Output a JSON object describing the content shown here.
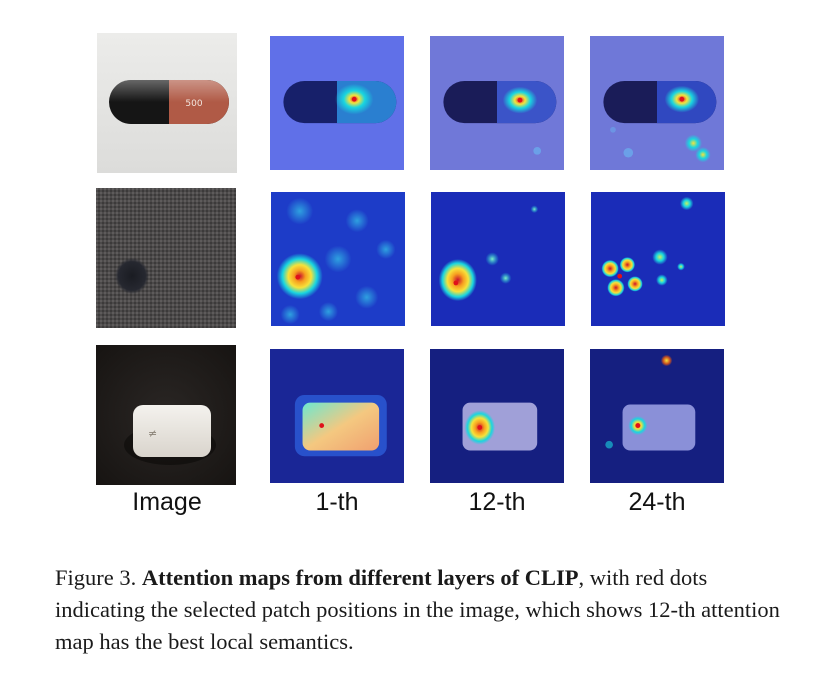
{
  "columns": [
    "Image",
    "1-th",
    "12-th",
    "24-th"
  ],
  "rows": [
    {
      "object": "capsule-pill",
      "background": "#e6e6e6"
    },
    {
      "object": "fabric-texture",
      "background": "#4a4848"
    },
    {
      "object": "white-pill",
      "background": "#1f1c1a"
    }
  ],
  "caption": {
    "prefix": "Figure 3.",
    "bold": "Attention maps from different layers of CLIP",
    "rest": ", with red dots indicating the selected patch positions in the image, which shows 12-th attention map has the best local semantics."
  },
  "colors": {
    "heat_low": "#1d2bb0",
    "heat_mid": "#19d6e0",
    "heat_hot": "#f7e23a",
    "heat_max": "#c8102e",
    "capsule_black": "#161616",
    "capsule_brown": "#b05a46"
  }
}
